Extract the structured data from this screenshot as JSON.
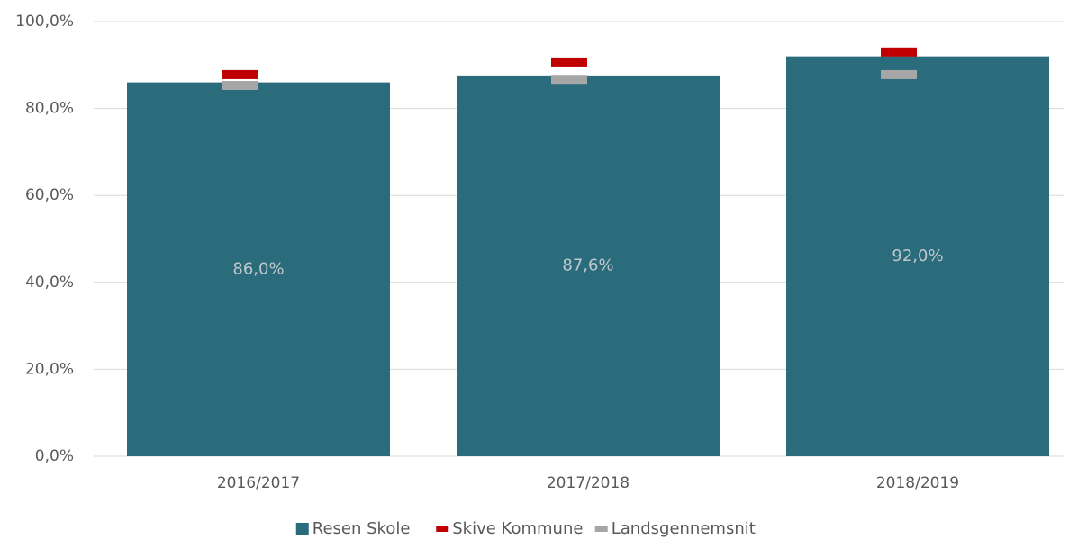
{
  "chart_data": {
    "type": "bar",
    "categories": [
      "2016/2017",
      "2017/2018",
      "2018/2019"
    ],
    "series": [
      {
        "name": "Resen Skole",
        "color": "#2a6b7c",
        "values": [
          86.0,
          87.6,
          92.0
        ],
        "value_labels": [
          "86,0%",
          "87,6%",
          "92,0%"
        ]
      },
      {
        "name": "Skive Kommune",
        "color": "#c00000",
        "marker": "dash",
        "values": [
          87.8,
          90.7,
          93.0
        ]
      },
      {
        "name": "Landsgennemsnit",
        "color": "#a6a6a6",
        "marker": "dash",
        "values": [
          85.3,
          86.7,
          87.8
        ]
      }
    ],
    "ylim": [
      0,
      100
    ],
    "yticks": [
      {
        "value": 0,
        "label": "0,0%"
      },
      {
        "value": 20,
        "label": "20,0%"
      },
      {
        "value": 40,
        "label": "40,0%"
      },
      {
        "value": 60,
        "label": "60,0%"
      },
      {
        "value": 80,
        "label": "80,0%"
      },
      {
        "value": 100,
        "label": "100,0%"
      }
    ],
    "grid": true,
    "legend": "bottom"
  }
}
